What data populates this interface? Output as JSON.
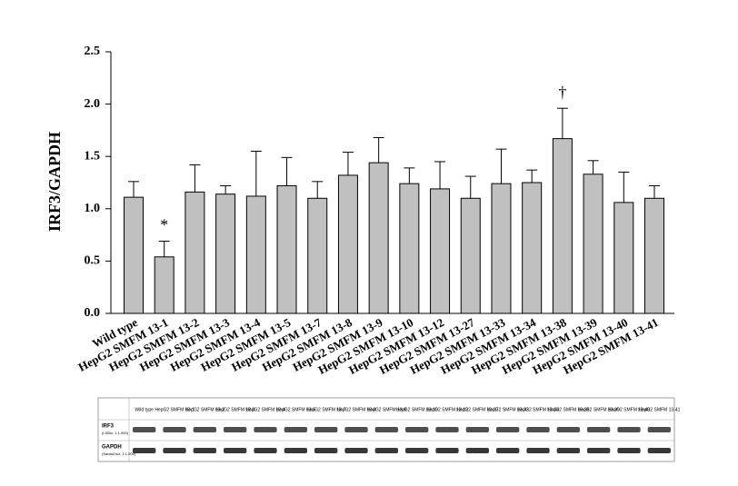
{
  "chart_data": {
    "type": "bar",
    "y_label": "IRF3/GAPDH",
    "categories": [
      "Wild type",
      "HepG2 SMFM 13-1",
      "HepG2 SMFM 13-2",
      "HepG2 SMFM 13-3",
      "HepG2 SMFM 13-4",
      "HepG2 SMFM 13-5",
      "HepG2 SMFM 13-7",
      "HepG2 SMFM 13-8",
      "HepG2 SMFM 13-9",
      "HepG2 SMFM 13-10",
      "HepG2 SMFM 13-12",
      "HepG2 SMFM 13-27",
      "HepG2 SMFM 13-33",
      "HepG2 SMFM 13-34",
      "HepG2 SMFM 13-38",
      "HepG2 SMFM 13-39",
      "HepG2 SMFM 13-40",
      "HepG2 SMFM 13-41"
    ],
    "values": [
      1.11,
      0.54,
      1.16,
      1.14,
      1.12,
      1.22,
      1.1,
      1.32,
      1.44,
      1.24,
      1.19,
      1.1,
      1.24,
      1.25,
      1.67,
      1.33,
      1.06,
      1.1
    ],
    "errors": [
      0.15,
      0.15,
      0.26,
      0.08,
      0.43,
      0.27,
      0.16,
      0.22,
      0.24,
      0.15,
      0.26,
      0.21,
      0.33,
      0.12,
      0.29,
      0.13,
      0.29,
      0.12
    ],
    "color": "#c0c0c0",
    "ylim": [
      0,
      2.5
    ],
    "yticks": [
      {
        "value": 0,
        "label": "0.0"
      },
      0.5,
      {
        "value": 1,
        "label": "1.0"
      },
      1.5,
      {
        "value": 2,
        "label": "2.0"
      },
      2.5
    ],
    "annotations": [
      {
        "text": "*",
        "category": "HepG2 SMFM 13-1"
      },
      {
        "text": "†",
        "category": "HepG2 SMFM 13-38"
      }
    ],
    "blot_rows": [
      {
        "name": "IRF3",
        "detail": "(LSBio, 1:1,000)"
      },
      {
        "name": "GAPDH",
        "detail": "(SantaCruz, 1:1,000)"
      }
    ]
  }
}
